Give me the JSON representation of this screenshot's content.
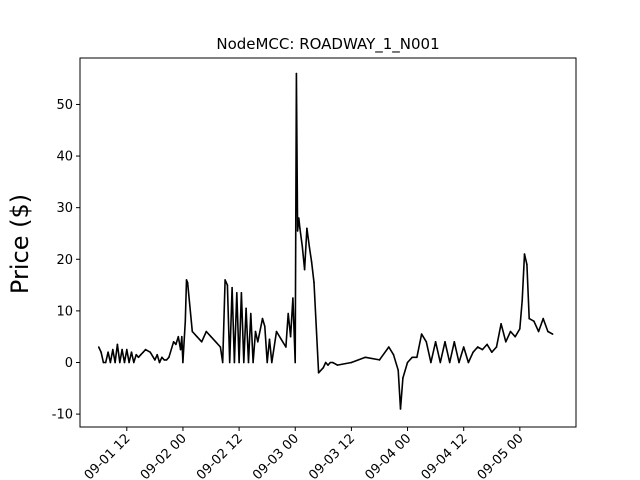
{
  "chart_data": {
    "type": "line",
    "title": "NodeMCC: ROADWAY_1_N001",
    "xlabel": "",
    "ylabel": "Price ($)",
    "x_axis": {
      "type": "date",
      "range": [
        "2023-09-01 02:00",
        "2023-09-05 12:00"
      ],
      "tick_values": [
        "09-01 12",
        "09-02 00",
        "09-02 12",
        "09-03 00",
        "09-03 12",
        "09-04 00",
        "09-04 12",
        "09-05 00"
      ],
      "tick_labels": [
        "09-01 12",
        "09-02 00",
        "09-02 12",
        "09-03 00",
        "09-03 12",
        "09-04 00",
        "09-04 12",
        "09-05 00"
      ],
      "label_rotation_deg": -45
    },
    "y_axis": {
      "range": [
        -12.5,
        59
      ],
      "ticks": [
        -10,
        0,
        10,
        20,
        30,
        40,
        50
      ]
    },
    "grid": false,
    "legend": "none",
    "series": [
      {
        "color": "#000000",
        "x": [
          "09-01 06:00",
          "09-01 06:30",
          "09-01 07:00",
          "09-01 07:30",
          "09-01 08:00",
          "09-01 08:30",
          "09-01 09:00",
          "09-01 09:30",
          "09-01 10:00",
          "09-01 10:30",
          "09-01 11:00",
          "09-01 11:30",
          "09-01 12:00",
          "09-01 12:30",
          "09-01 13:00",
          "09-01 13:30",
          "09-01 14:00",
          "09-01 14:30",
          "09-01 15:00",
          "09-01 15:30",
          "09-01 16:00",
          "09-01 17:00",
          "09-01 18:00",
          "09-01 18:30",
          "09-01 19:00",
          "09-01 19:30",
          "09-01 20:00",
          "09-01 20:30",
          "09-01 21:00",
          "09-01 22:00",
          "09-01 22:30",
          "09-01 23:00",
          "09-01 23:30",
          "09-01 23:45",
          "09-02 00:00",
          "09-02 00:30",
          "09-02 00:45",
          "09-02 01:00",
          "09-02 02:00",
          "09-02 03:00",
          "09-02 04:00",
          "09-02 05:00",
          "09-02 06:00",
          "09-02 07:00",
          "09-02 08:00",
          "09-02 08:30",
          "09-02 09:00",
          "09-02 09:30",
          "09-02 10:00",
          "09-02 10:30",
          "09-02 11:00",
          "09-02 11:30",
          "09-02 12:00",
          "09-02 12:30",
          "09-02 13:00",
          "09-02 13:30",
          "09-02 14:00",
          "09-02 14:30",
          "09-02 15:00",
          "09-02 15:30",
          "09-02 16:00",
          "09-02 17:00",
          "09-02 17:30",
          "09-02 18:00",
          "09-02 18:30",
          "09-02 19:00",
          "09-02 20:00",
          "09-02 21:00",
          "09-02 22:00",
          "09-02 22:30",
          "09-02 23:00",
          "09-02 23:30",
          "09-03 00:00",
          "09-03 00:15",
          "09-03 00:30",
          "09-03 00:45",
          "09-03 01:00",
          "09-03 01:30",
          "09-03 02:00",
          "09-03 02:30",
          "09-03 03:00",
          "09-03 03:30",
          "09-03 04:00",
          "09-03 05:00",
          "09-03 06:00",
          "09-03 06:30",
          "09-03 07:00",
          "09-03 07:30",
          "09-03 08:00",
          "09-03 09:00",
          "09-03 12:00",
          "09-03 15:00",
          "09-03 18:00",
          "09-03 20:00",
          "09-03 21:00",
          "09-03 22:00",
          "09-03 22:30",
          "09-03 23:00",
          "09-04 00:00",
          "09-04 01:00",
          "09-04 02:00",
          "09-04 03:00",
          "09-04 04:00",
          "09-04 05:00",
          "09-04 06:00",
          "09-04 07:00",
          "09-04 08:00",
          "09-04 09:00",
          "09-04 10:00",
          "09-04 11:00",
          "09-04 12:00",
          "09-04 13:00",
          "09-04 14:00",
          "09-04 15:00",
          "09-04 16:00",
          "09-04 17:00",
          "09-04 18:00",
          "09-04 19:00",
          "09-04 20:00",
          "09-04 21:00",
          "09-04 22:00",
          "09-04 23:00",
          "09-05 00:00",
          "09-05 00:30",
          "09-05 01:00",
          "09-05 01:30",
          "09-05 02:00",
          "09-05 03:00",
          "09-05 04:00",
          "09-05 05:00",
          "09-05 06:00",
          "09-05 07:00"
        ],
        "y": [
          3,
          2,
          0,
          0,
          2,
          0,
          2.5,
          0,
          3.5,
          0,
          2.5,
          0,
          2.5,
          0,
          2,
          0,
          1.5,
          1,
          1.5,
          2,
          2.5,
          2,
          0.5,
          1.5,
          0,
          1,
          0.5,
          0.5,
          1,
          4,
          3.5,
          5,
          2.5,
          5,
          0,
          8,
          16,
          15.5,
          6,
          5,
          4,
          6,
          5,
          4,
          3,
          0,
          16,
          15,
          0,
          14.5,
          0,
          13.5,
          0,
          13.5,
          0,
          10.5,
          0,
          9.5,
          0,
          6,
          4,
          8.5,
          7,
          0,
          4.5,
          0,
          6,
          4.5,
          3,
          9.5,
          5,
          12.5,
          0,
          56,
          25.5,
          28,
          26,
          22.5,
          18,
          26,
          22.5,
          19.5,
          15.5,
          -2,
          -1,
          0,
          -0.5,
          0,
          0,
          -0.5,
          0,
          1,
          0.5,
          3,
          1.5,
          -1.5,
          -9,
          -3,
          0,
          1,
          1,
          5.5,
          4,
          0,
          4,
          0,
          4,
          0,
          4,
          0,
          3,
          0,
          2,
          3,
          2.5,
          3.5,
          2,
          3,
          7.5,
          4,
          6,
          5,
          6.5,
          12,
          21,
          19,
          8.5,
          8,
          6,
          8.5,
          6,
          5.5
        ]
      }
    ]
  }
}
